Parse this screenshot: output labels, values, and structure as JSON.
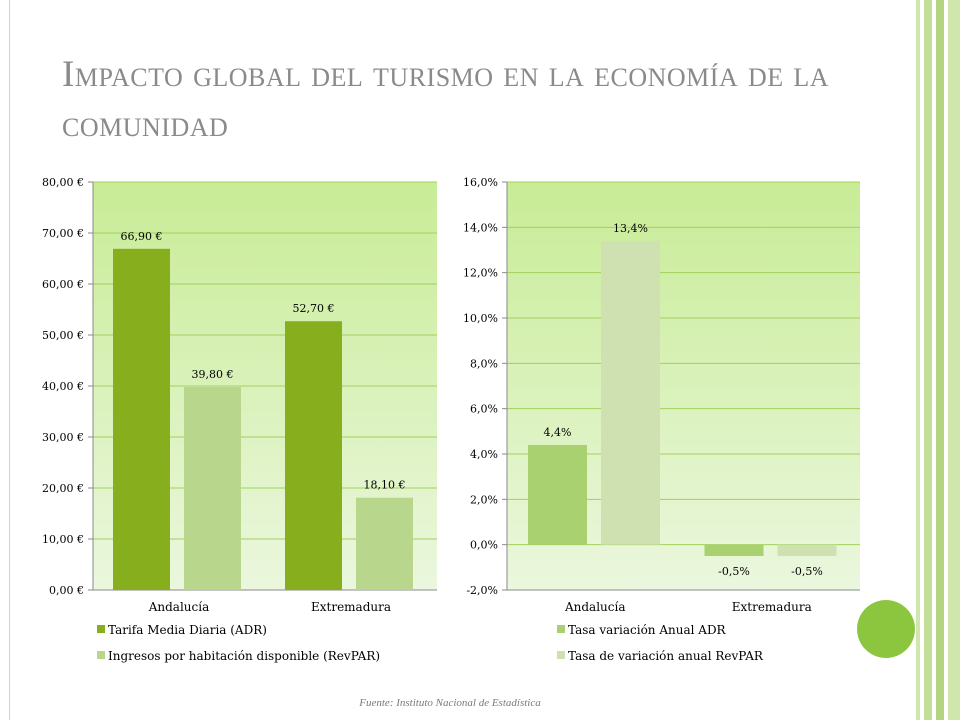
{
  "slide": {
    "title": "Impacto global del turismo en la economía de la comunidad",
    "source": "Fuente: Instituto Nacional de Estadística"
  },
  "colors": {
    "accent": "#8cc63f",
    "plot_top": "#c8ec96",
    "plot_bottom": "#ebf7de",
    "title": "#8a8a8a"
  },
  "chart_data": [
    {
      "type": "bar",
      "categories": [
        "Andalucía",
        "Extremadura"
      ],
      "series": [
        {
          "name": "Tarifa Media Diaria (ADR)",
          "values": [
            66.9,
            52.7
          ],
          "labels": [
            "66,90 €",
            "52,70 €"
          ],
          "color": "#86ae1d"
        },
        {
          "name": "Ingresos por habitación disponible (RevPAR)",
          "values": [
            39.8,
            18.1
          ],
          "labels": [
            "39,80 €",
            "18,10 €"
          ],
          "color": "#b8d78d"
        }
      ],
      "ylim": [
        0,
        80
      ],
      "yticks": [
        0,
        10,
        20,
        30,
        40,
        50,
        60,
        70,
        80
      ],
      "ytick_labels": [
        "0,00 €",
        "10,00 €",
        "20,00 €",
        "30,00 €",
        "40,00 €",
        "50,00 €",
        "60,00 €",
        "70,00 €",
        "80,00 €"
      ],
      "grid": true,
      "legend": "bottom"
    },
    {
      "type": "bar",
      "categories": [
        "Andalucía",
        "Extremadura"
      ],
      "series": [
        {
          "name": "Tasa variación Anual ADR",
          "values": [
            4.4,
            -0.5
          ],
          "labels": [
            "4,4%",
            "-0,5%"
          ],
          "color": "#a9d170"
        },
        {
          "name": "Tasa de variación anual RevPAR",
          "values": [
            13.4,
            -0.5
          ],
          "labels": [
            "13,4%",
            "-0,5%"
          ],
          "color": "#cfe1b1"
        }
      ],
      "ylim": [
        -2,
        16
      ],
      "yticks": [
        -2,
        0,
        2,
        4,
        6,
        8,
        10,
        12,
        14,
        16
      ],
      "ytick_labels": [
        "-2,0%",
        "0,0%",
        "2,0%",
        "4,0%",
        "6,0%",
        "8,0%",
        "10,0%",
        "12,0%",
        "14,0%",
        "16,0%"
      ],
      "grid": true,
      "legend": "bottom"
    }
  ]
}
